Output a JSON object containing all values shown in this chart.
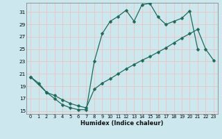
{
  "xlabel": "Humidex (Indice chaleur)",
  "bg_color": "#cce8ee",
  "grid_color": "#e8c8c8",
  "line_color": "#1a6b5a",
  "xlim": [
    -0.5,
    23.5
  ],
  "ylim": [
    14.5,
    32.5
  ],
  "xticks": [
    0,
    1,
    2,
    3,
    4,
    5,
    6,
    7,
    8,
    9,
    10,
    11,
    12,
    13,
    14,
    15,
    16,
    17,
    18,
    19,
    20,
    21,
    22,
    23
  ],
  "yticks": [
    15,
    17,
    19,
    21,
    23,
    25,
    27,
    29,
    31
  ],
  "line1_x": [
    0,
    1,
    2,
    3,
    4,
    5,
    6,
    7,
    8,
    9,
    10,
    11,
    12,
    13,
    14,
    15,
    16,
    17,
    18,
    19,
    20,
    21
  ],
  "line1_y": [
    20.5,
    19.5,
    18.0,
    17.0,
    16.0,
    15.5,
    15.2,
    15.2,
    23.0,
    27.5,
    29.5,
    30.3,
    31.3,
    29.5,
    32.2,
    32.4,
    30.2,
    29.0,
    29.5,
    30.0,
    31.2,
    25.0
  ],
  "line2_x": [
    0,
    2,
    3,
    4,
    5,
    6,
    7,
    8,
    9,
    10,
    11,
    12,
    13,
    14,
    15,
    16,
    17,
    18,
    19,
    20,
    21,
    22,
    23
  ],
  "line2_y": [
    20.5,
    18.0,
    17.5,
    16.8,
    16.2,
    15.8,
    15.5,
    18.5,
    19.5,
    20.2,
    21.0,
    21.8,
    22.5,
    23.2,
    23.8,
    24.5,
    25.2,
    26.0,
    26.8,
    27.5,
    28.2,
    25.0,
    23.2
  ],
  "marker_size": 2.5
}
